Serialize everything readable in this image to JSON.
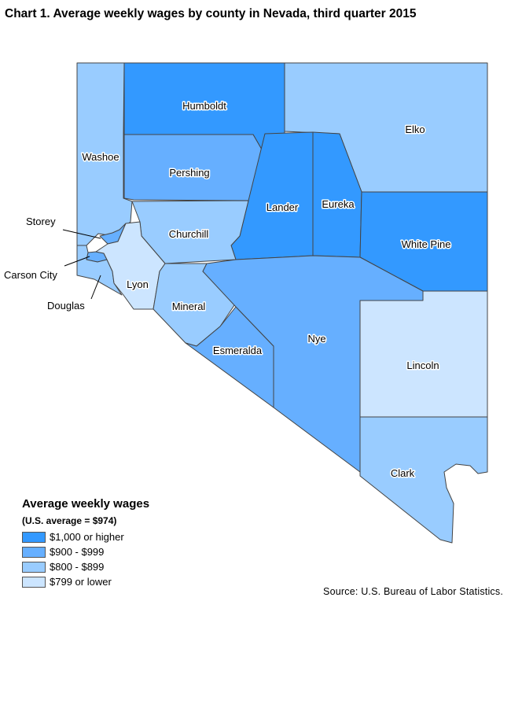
{
  "title": "Chart 1. Average weekly wages by county in Nevada, third quarter 2015",
  "legend": {
    "title": "Average weekly wages",
    "subtitle": "(U.S. average = $974)",
    "items": [
      {
        "label": "$1,000 or higher",
        "color": "#3399ff"
      },
      {
        "label": "$900 - $999",
        "color": "#66afff"
      },
      {
        "label": "$800 - $899",
        "color": "#99ccff"
      },
      {
        "label": "$799 or lower",
        "color": "#cce5ff"
      }
    ]
  },
  "source": "Source: U.S. Bureau of Labor Statistics.",
  "counties": [
    {
      "name": "Humboldt",
      "category": 0
    },
    {
      "name": "Elko",
      "category": 2
    },
    {
      "name": "Washoe",
      "category": 2
    },
    {
      "name": "Pershing",
      "category": 1
    },
    {
      "name": "Lander",
      "category": 0
    },
    {
      "name": "Eureka",
      "category": 0
    },
    {
      "name": "White Pine",
      "category": 0
    },
    {
      "name": "Churchill",
      "category": 2
    },
    {
      "name": "Storey",
      "category": 1
    },
    {
      "name": "Carson City",
      "category": 1
    },
    {
      "name": "Douglas",
      "category": 2
    },
    {
      "name": "Lyon",
      "category": 3
    },
    {
      "name": "Mineral",
      "category": 2
    },
    {
      "name": "Esmeralda",
      "category": 1
    },
    {
      "name": "Nye",
      "category": 1
    },
    {
      "name": "Lincoln",
      "category": 3
    },
    {
      "name": "Clark",
      "category": 2
    }
  ]
}
